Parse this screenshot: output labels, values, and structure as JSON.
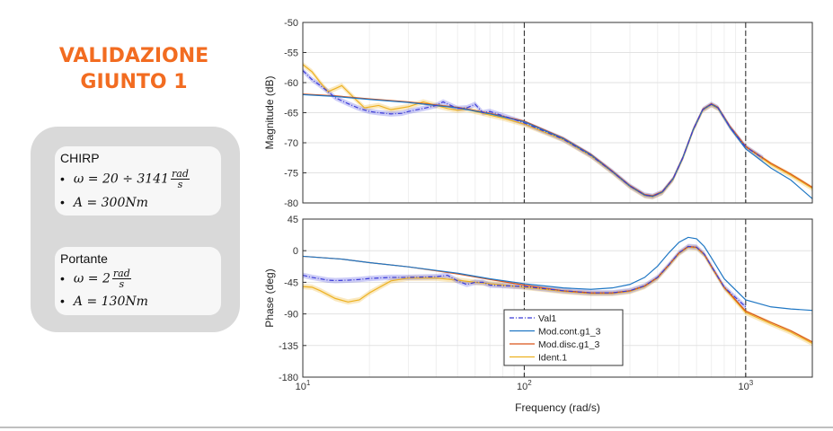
{
  "slide": {
    "title_line1": "VALIDAZIONE",
    "title_line2": "GIUNTO 1",
    "accent_color": "#f26c21",
    "panel_color": "#d9d9d9"
  },
  "cards": [
    {
      "title": "CHIRP",
      "b1_prefix": "ω = 20 ÷ 3141",
      "b1_num": "rad",
      "b1_den": "s",
      "b2": "A = 300Nm"
    },
    {
      "title": "Portante",
      "b1_prefix": "ω = 2",
      "b1_num": "rad",
      "b1_den": "s",
      "b2": "A = 130Nm"
    }
  ],
  "chart_data": {
    "type": "line",
    "x_scale": "log",
    "xlim": [
      10,
      2000
    ],
    "xlabel": "Frequency  (rad/s)",
    "x_ticks": [
      10,
      100,
      1000
    ],
    "x_tick_labels": [
      {
        "base": "10",
        "exp": "1"
      },
      {
        "base": "10",
        "exp": "2"
      },
      {
        "base": "10",
        "exp": "3"
      }
    ],
    "vlines": [
      100,
      1000
    ],
    "grid": true,
    "legend_location": "inside-bottom-center",
    "legend": [
      {
        "name": "Val1",
        "color": "#3b3bd8",
        "dash": "5,2,1,2"
      },
      {
        "name": "Mod.cont.g1_3",
        "color": "#1f77c4",
        "dash": ""
      },
      {
        "name": "Mod.disc.g1_3",
        "color": "#d95319",
        "dash": ""
      },
      {
        "name": "Ident.1",
        "color": "#edb120",
        "dash": ""
      }
    ],
    "magnitude": {
      "ylabel": "Magnitude (dB)",
      "ylim": [
        -80,
        -50
      ],
      "yticks": [
        -80,
        -75,
        -70,
        -65,
        -60,
        -55,
        -50
      ],
      "series": [
        {
          "name": "Mod.cont.g1_3",
          "x": [
            10,
            14,
            20,
            30,
            50,
            70,
            100,
            150,
            200,
            250,
            300,
            350,
            380,
            420,
            470,
            520,
            580,
            640,
            700,
            750,
            850,
            1000,
            1300,
            1600,
            2000
          ],
          "y": [
            -62,
            -62.3,
            -62.8,
            -63.3,
            -64.2,
            -65.2,
            -66.5,
            -69.3,
            -72,
            -74.8,
            -77.2,
            -78.7,
            -78.9,
            -78.2,
            -76,
            -72.5,
            -67.8,
            -64.5,
            -63.6,
            -64.2,
            -67.5,
            -71,
            -74.2,
            -76.2,
            -79.3
          ]
        },
        {
          "name": "Mod.disc.g1_3",
          "x": [
            10,
            14,
            20,
            30,
            50,
            70,
            100,
            150,
            200,
            250,
            300,
            350,
            380,
            420,
            470,
            520,
            580,
            640,
            700,
            750,
            850,
            1000,
            1300,
            1600,
            2000
          ],
          "y": [
            -61.9,
            -62.2,
            -62.7,
            -63.2,
            -64.1,
            -65.1,
            -66.4,
            -69.2,
            -71.9,
            -74.7,
            -77.1,
            -78.6,
            -78.8,
            -78.1,
            -75.9,
            -72.4,
            -67.7,
            -64.4,
            -63.5,
            -64.1,
            -67.3,
            -70.6,
            -73.4,
            -75.2,
            -77.4
          ]
        },
        {
          "name": "Ident.1",
          "x": [
            10,
            11,
            12,
            13,
            14,
            15,
            17,
            19,
            22,
            25,
            30,
            35,
            40,
            45,
            50,
            55,
            60,
            65,
            70,
            80,
            100,
            150,
            200,
            250,
            300,
            350,
            380,
            420,
            470,
            520,
            580,
            640,
            700,
            750,
            850,
            1000,
            1300,
            1600,
            2000
          ],
          "y": [
            -57,
            -58.2,
            -60,
            -61.5,
            -61,
            -60.5,
            -62.5,
            -64.2,
            -63.8,
            -64.5,
            -64,
            -63.2,
            -63.8,
            -64.3,
            -64.6,
            -64.4,
            -64.8,
            -65.1,
            -65.4,
            -65.9,
            -66.9,
            -69.5,
            -72.2,
            -74.9,
            -77.3,
            -78.8,
            -79,
            -78.3,
            -76.1,
            -72.6,
            -67.9,
            -64.6,
            -63.7,
            -64.3,
            -67.4,
            -70.7,
            -73.6,
            -75.4,
            -77.6
          ]
        },
        {
          "name": "Val1",
          "x": [
            10,
            11,
            12,
            13,
            14,
            16,
            18,
            20,
            22,
            25,
            28,
            30,
            35,
            40,
            43,
            46,
            50,
            55,
            60,
            65,
            70,
            80,
            100,
            150,
            200,
            250,
            300,
            350,
            380,
            420,
            470,
            520,
            580,
            640,
            700,
            750,
            850,
            1000,
            1200
          ],
          "y": [
            -58,
            -59.5,
            -60.5,
            -61.5,
            -62.5,
            -63.5,
            -64.3,
            -64.8,
            -65,
            -65.2,
            -65.1,
            -64.8,
            -64.3,
            -63.8,
            -63.2,
            -63.7,
            -64.3,
            -64.2,
            -63.6,
            -65,
            -64.8,
            -65.5,
            -66.7,
            -69.4,
            -72.1,
            -74.8,
            -77.2,
            -78.7,
            -78.9,
            -78.2,
            -76,
            -72.5,
            -67.8,
            -64.5,
            -63.6,
            -64.2,
            -67.4,
            -70.7,
            -72.6
          ]
        }
      ]
    },
    "phase": {
      "ylabel": "Phase (deg)",
      "ylim": [
        -180,
        45
      ],
      "yticks": [
        -180,
        -135,
        -90,
        -45,
        0,
        45
      ],
      "series": [
        {
          "name": "Mod.cont.g1_3",
          "x": [
            10,
            15,
            20,
            30,
            50,
            70,
            100,
            150,
            200,
            250,
            300,
            350,
            400,
            450,
            500,
            550,
            600,
            650,
            700,
            800,
            1000,
            1300,
            1600,
            2000
          ],
          "y": [
            -8,
            -12,
            -17,
            -23,
            -32,
            -40,
            -47,
            -53,
            -55,
            -53,
            -48,
            -38,
            -22,
            -3,
            12,
            19,
            17,
            6,
            -10,
            -40,
            -70,
            -80,
            -83,
            -85
          ]
        },
        {
          "name": "Mod.disc.g1_3",
          "x": [
            10,
            15,
            20,
            30,
            50,
            70,
            100,
            150,
            200,
            250,
            300,
            350,
            400,
            450,
            500,
            550,
            600,
            650,
            700,
            800,
            1000,
            1300,
            1600,
            2000
          ],
          "y": [
            -8,
            -12,
            -17,
            -23,
            -33,
            -41,
            -49,
            -57,
            -60,
            -60,
            -57,
            -50,
            -38,
            -20,
            -3,
            6,
            5,
            -5,
            -22,
            -52,
            -86,
            -102,
            -114,
            -130
          ]
        },
        {
          "name": "Ident.1",
          "x": [
            10,
            11,
            12,
            14,
            16,
            18,
            20,
            25,
            30,
            40,
            50,
            60,
            70,
            100,
            150,
            200,
            250,
            300,
            350,
            400,
            450,
            500,
            550,
            600,
            650,
            700,
            800,
            1000,
            1300,
            1600,
            2000
          ],
          "y": [
            -51,
            -52,
            -57,
            -68,
            -73,
            -70,
            -60,
            -43,
            -39,
            -39,
            -42,
            -45,
            -47,
            -52,
            -58,
            -61,
            -61,
            -58,
            -51,
            -39,
            -21,
            -4,
            5,
            4,
            -6,
            -23,
            -53,
            -88,
            -104,
            -116,
            -132
          ]
        },
        {
          "name": "Val1",
          "x": [
            10,
            11,
            12,
            13,
            14,
            16,
            18,
            20,
            25,
            30,
            40,
            45,
            50,
            55,
            60,
            65,
            70,
            100,
            150,
            200,
            250,
            300,
            350,
            400,
            450,
            500,
            550,
            600,
            650,
            700,
            800,
            1000
          ],
          "y": [
            -35,
            -38,
            -40,
            -42,
            -42.5,
            -42,
            -41,
            -39.5,
            -38,
            -38,
            -37,
            -35,
            -43,
            -48,
            -45,
            -45,
            -49,
            -51,
            -57,
            -60,
            -60,
            -57,
            -50,
            -38,
            -20,
            -3,
            6,
            5,
            -5,
            -22,
            -52,
            -80
          ]
        }
      ]
    }
  }
}
